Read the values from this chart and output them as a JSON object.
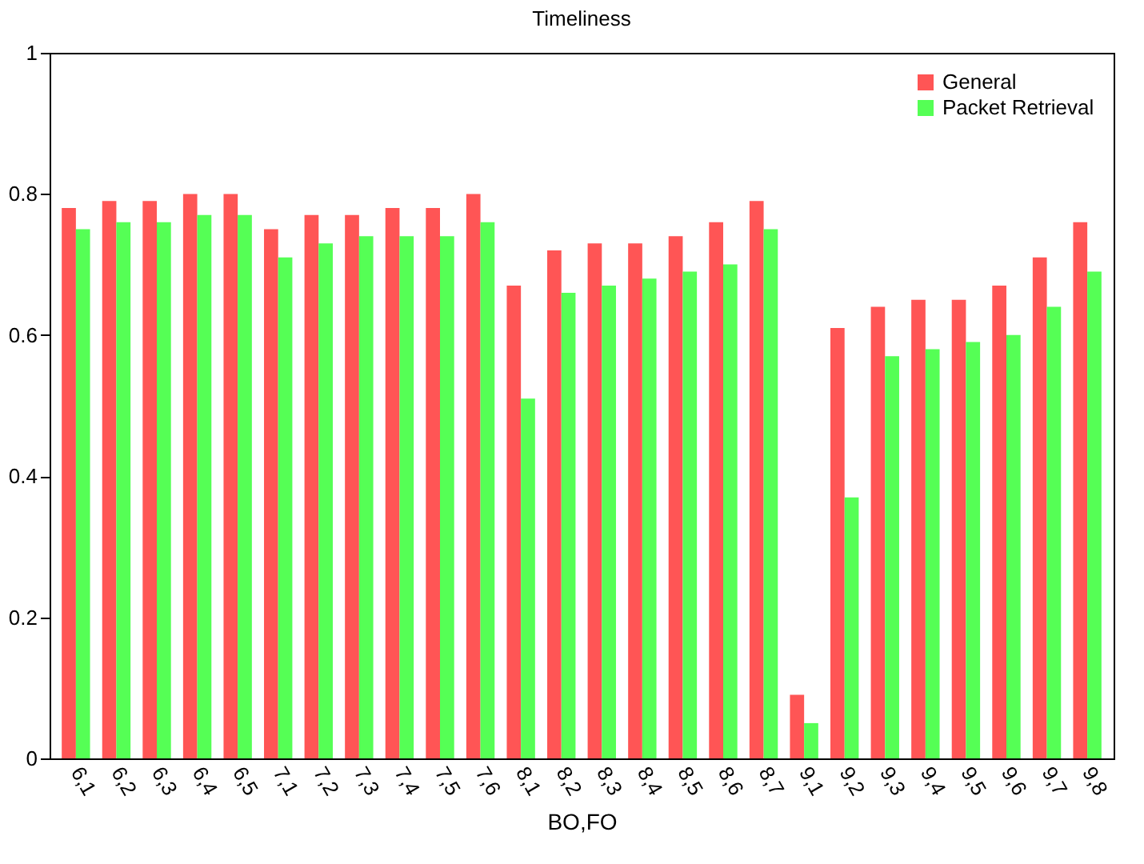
{
  "chart_data": {
    "type": "bar",
    "title": "Timeliness",
    "xlabel": "BO,FO",
    "categories": [
      "6,1",
      "6,2",
      "6,3",
      "6,4",
      "6,5",
      "7,1",
      "7,2",
      "7,3",
      "7,4",
      "7,5",
      "7,6",
      "8,1",
      "8,2",
      "8,3",
      "8,4",
      "8,5",
      "8,6",
      "8,7",
      "9,1",
      "9,2",
      "9,3",
      "9,4",
      "9,5",
      "9,6",
      "9,7",
      "9,8"
    ],
    "series": [
      {
        "name": "General",
        "color": "#ff5555",
        "values": [
          0.78,
          0.79,
          0.79,
          0.8,
          0.8,
          0.75,
          0.77,
          0.77,
          0.78,
          0.78,
          0.8,
          0.67,
          0.72,
          0.73,
          0.73,
          0.74,
          0.76,
          0.79,
          0.09,
          0.61,
          0.64,
          0.65,
          0.65,
          0.67,
          0.71,
          0.76
        ]
      },
      {
        "name": "Packet Retrieval",
        "color": "#55ff55",
        "values": [
          0.75,
          0.76,
          0.76,
          0.77,
          0.77,
          0.71,
          0.73,
          0.74,
          0.74,
          0.74,
          0.76,
          0.51,
          0.66,
          0.67,
          0.68,
          0.69,
          0.7,
          0.75,
          0.05,
          0.37,
          0.57,
          0.58,
          0.59,
          0.6,
          0.64,
          0.69
        ]
      }
    ],
    "ylim": [
      0,
      1
    ],
    "yticks": [
      0,
      0.2,
      0.4,
      0.6,
      0.8,
      1
    ],
    "grid": false,
    "legend": "top right"
  }
}
